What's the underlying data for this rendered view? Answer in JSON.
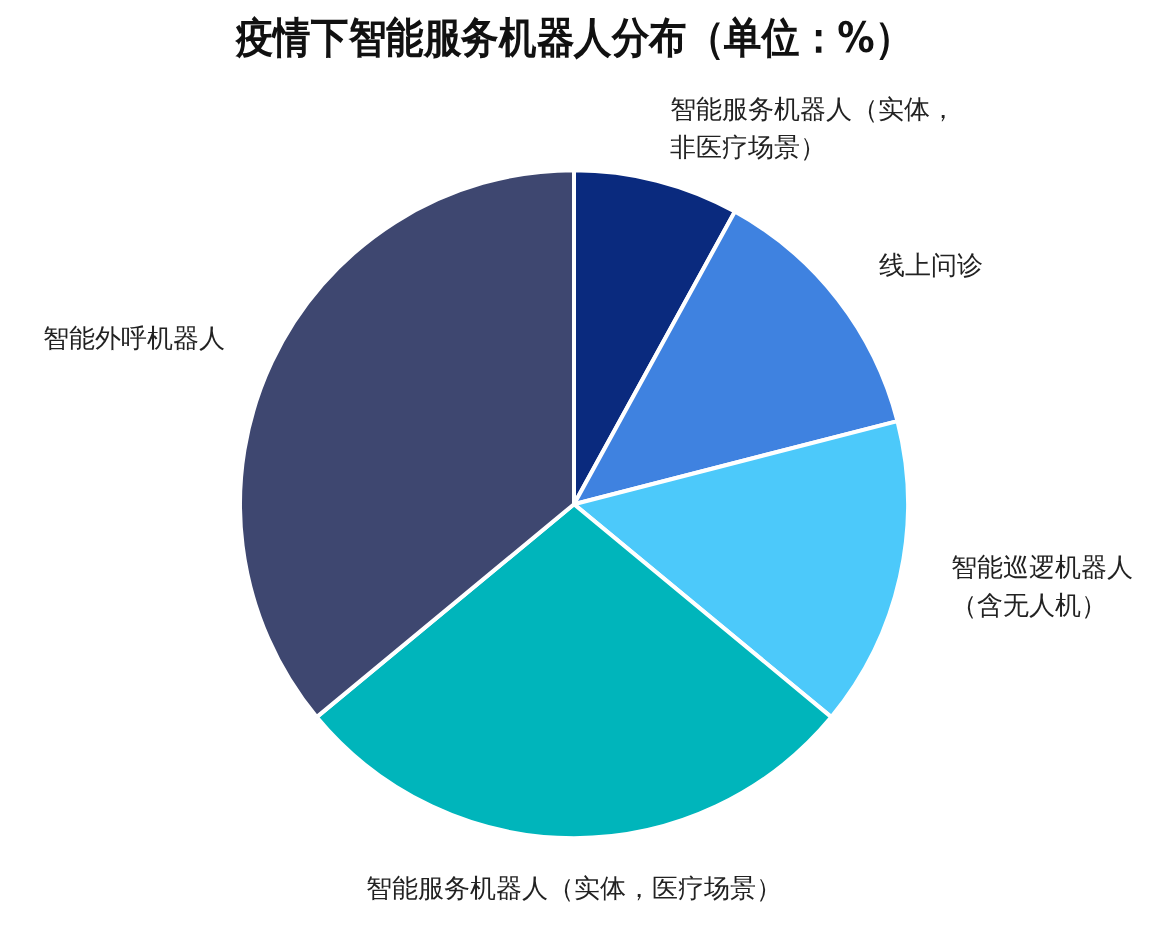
{
  "chart_data": {
    "type": "pie",
    "title": "疫情下智能服务机器人分布（单位：%）",
    "categories": [
      "智能服务机器人（实体，非医疗场景）",
      "线上问诊",
      "智能巡逻机器人（含无人机）",
      "智能服务机器人（实体，医疗场景）",
      "智能外呼机器人"
    ],
    "values": [
      8,
      13,
      15,
      28,
      36
    ],
    "colors": [
      "#0a2a7e",
      "#3f82e0",
      "#4cc9fa",
      "#00b5bb",
      "#3e4770"
    ],
    "legend": false
  }
}
